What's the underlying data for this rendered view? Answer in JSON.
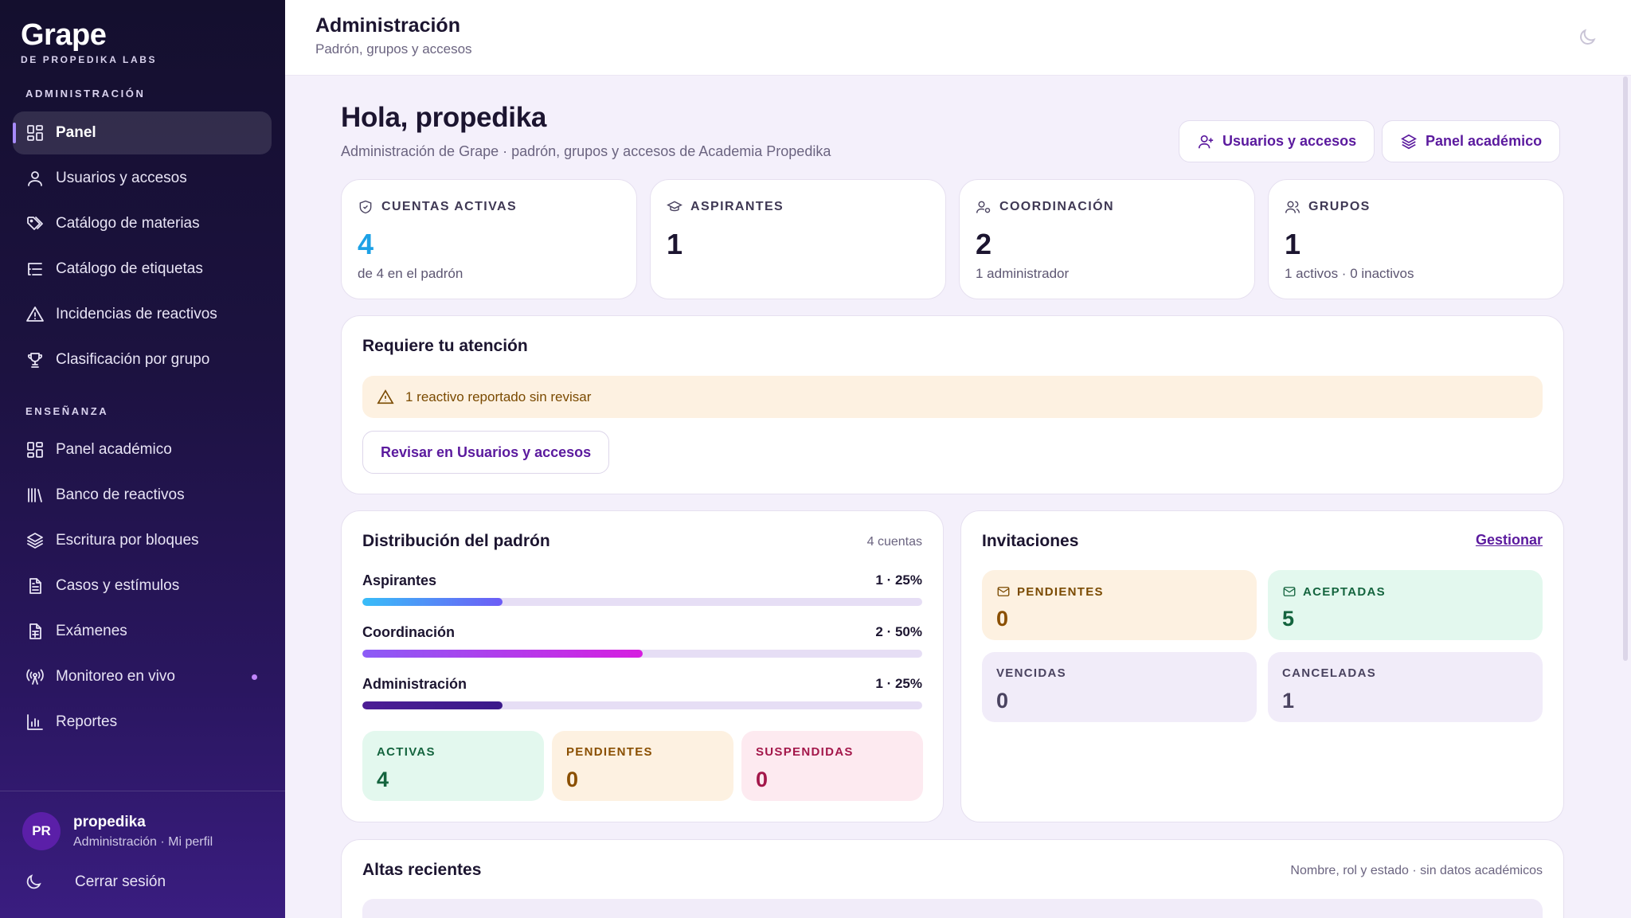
{
  "sidebar": {
    "brand_name": "Grape",
    "brand_sub": "DE PROPEDIKA LABS",
    "section_admin": "ADMINISTRACIÓN",
    "section_teaching": "ENSEÑANZA",
    "admin_items": [
      {
        "label": "Panel",
        "icon": "grid-icon",
        "active": true
      },
      {
        "label": "Usuarios y accesos",
        "icon": "user-icon"
      },
      {
        "label": "Catálogo de materias",
        "icon": "tags-icon"
      },
      {
        "label": "Catálogo de etiquetas",
        "icon": "list-tree-icon"
      },
      {
        "label": "Incidencias de reactivos",
        "icon": "warning-icon"
      },
      {
        "label": "Clasificación por grupo",
        "icon": "trophy-icon"
      }
    ],
    "teaching_items": [
      {
        "label": "Panel académico",
        "icon": "grid-icon"
      },
      {
        "label": "Banco de reactivos",
        "icon": "library-icon"
      },
      {
        "label": "Escritura por bloques",
        "icon": "layers-icon"
      },
      {
        "label": "Casos y estímulos",
        "icon": "file-text-icon"
      },
      {
        "label": "Exámenes",
        "icon": "file-spreadsheet-icon"
      },
      {
        "label": "Monitoreo en vivo",
        "icon": "radio-icon"
      },
      {
        "label": "Reportes",
        "icon": "bar-chart-icon"
      }
    ],
    "profile": {
      "initials": "PR",
      "name": "propedika",
      "role": "Administración · Mi perfil"
    },
    "logout_label": "Cerrar sesión"
  },
  "topbar": {
    "title": "Administración",
    "subtitle": "Padrón, grupos y accesos"
  },
  "main": {
    "greeting": "Hola, propedika",
    "greeting_sub": "Administración de Grape · padrón, grupos y accesos de Academia Propedika",
    "btn_users": "Usuarios y accesos",
    "btn_panel": "Panel académico",
    "stats": [
      {
        "label": "CUENTAS ACTIVAS",
        "value": "4",
        "note": "de 4 en el padrón"
      },
      {
        "label": "ASPIRANTES",
        "value": "1",
        "note": ""
      },
      {
        "label": "COORDINACIÓN",
        "value": "2",
        "note": "1 administrador"
      },
      {
        "label": "GRUPOS",
        "value": "1",
        "note": "1 activos · 0 inactivos"
      }
    ],
    "attention": {
      "title": "Requiere tu atención",
      "alert": "1 reactivo reportado sin revisar",
      "button": "Revisar en Usuarios y accesos"
    },
    "distribution": {
      "title": "Distribución del padrón",
      "meta": "4 cuentas",
      "rows": [
        {
          "name": "Aspirantes",
          "value": "1 · 25%",
          "fraction": 0.25
        },
        {
          "name": "Coordinación",
          "value": "2 · 50%",
          "fraction": 0.5
        },
        {
          "name": "Administración",
          "value": "1 · 25%",
          "fraction": 0.25
        }
      ],
      "status": [
        {
          "label": "ACTIVAS",
          "value": "4"
        },
        {
          "label": "PENDIENTES",
          "value": "0"
        },
        {
          "label": "SUSPENDIDAS",
          "value": "0"
        }
      ]
    },
    "invitations": {
      "title": "Invitaciones",
      "link": "Gestionar",
      "items": [
        {
          "label": "PENDIENTES",
          "value": "0"
        },
        {
          "label": "ACEPTADAS",
          "value": "5"
        },
        {
          "label": "VENCIDAS",
          "value": "0"
        },
        {
          "label": "CANCELADAS",
          "value": "1"
        }
      ]
    },
    "recent": {
      "title": "Altas recientes",
      "meta": "Nombre, rol y estado · sin datos académicos"
    }
  },
  "colors": {
    "accent": "#5b1a9e",
    "bar_aspirantes": "#3b82f6",
    "bar_coordinacion": "#c026d3",
    "bar_admin": "#4c1d95",
    "ok_bg": "#e3f8ee",
    "warn_bg": "#fdf1e1",
    "danger_bg": "#fdeaf0"
  }
}
